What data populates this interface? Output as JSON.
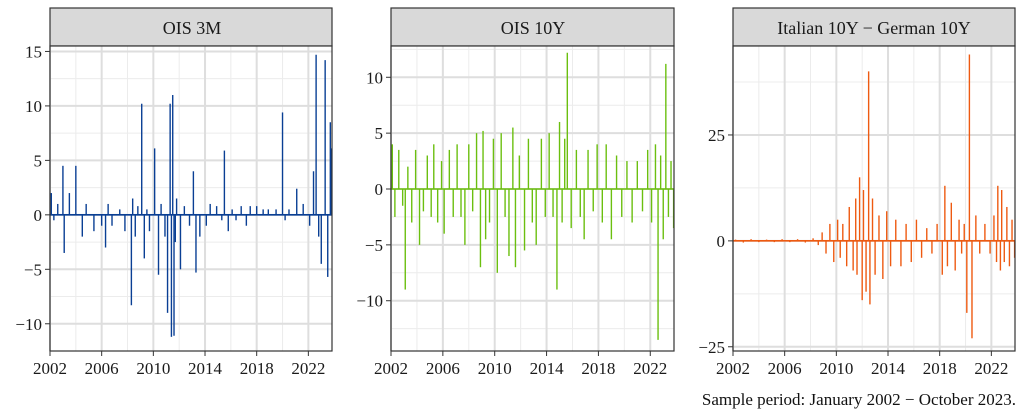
{
  "caption": "Sample period: January 2002 − October 2023.",
  "chart_data": [
    {
      "type": "bar",
      "title": "OIS 3M",
      "color": "#0a3f94",
      "xlim": [
        2002,
        2023.83
      ],
      "ylim": [
        -12.5,
        15.5
      ],
      "x_ticks": [
        2002,
        2006,
        2010,
        2014,
        2018,
        2022
      ],
      "y_ticks": [
        -10,
        -5,
        0,
        5,
        10,
        15
      ],
      "y_tick_labels": [
        "−10",
        "−5",
        "0",
        "5",
        "10",
        "15"
      ],
      "x": [
        2002.1,
        2002.3,
        2002.6,
        2003.0,
        2003.1,
        2003.5,
        2004.0,
        2004.5,
        2004.8,
        2005.4,
        2006.0,
        2006.3,
        2006.5,
        2006.8,
        2007.4,
        2007.8,
        2008.3,
        2008.4,
        2008.6,
        2008.8,
        2009.1,
        2009.3,
        2009.5,
        2009.7,
        2010.1,
        2010.4,
        2010.6,
        2010.9,
        2011.1,
        2011.3,
        2011.4,
        2011.5,
        2011.6,
        2011.7,
        2011.8,
        2012.1,
        2012.4,
        2012.8,
        2013.1,
        2013.3,
        2013.6,
        2014.1,
        2014.4,
        2014.9,
        2015.3,
        2015.5,
        2015.8,
        2016.1,
        2016.4,
        2016.8,
        2017.2,
        2017.5,
        2018.0,
        2018.5,
        2018.9,
        2019.5,
        2020.0,
        2020.2,
        2020.5,
        2021.1,
        2021.6,
        2022.1,
        2022.4,
        2022.6,
        2022.8,
        2023.0,
        2023.2,
        2023.3,
        2023.5,
        2023.7,
        2023.8
      ],
      "y": [
        2.0,
        -0.5,
        1.0,
        4.5,
        -3.5,
        2.0,
        4.5,
        -2.0,
        1.0,
        -1.5,
        -1.0,
        -3.0,
        1.0,
        -1.0,
        0.5,
        -1.5,
        -8.3,
        1.5,
        -2.0,
        0.8,
        10.2,
        -4.0,
        0.5,
        -1.5,
        6.1,
        -5.5,
        1.0,
        -2.0,
        -9.0,
        10.2,
        -11.2,
        11.0,
        -11.1,
        -2.5,
        1.5,
        -5.0,
        0.8,
        -1.0,
        4.0,
        -5.3,
        -2.0,
        -1.0,
        1.0,
        0.8,
        -0.5,
        5.9,
        -1.5,
        0.5,
        -0.5,
        0.8,
        -1.0,
        0.8,
        0.8,
        0.5,
        0.5,
        0.5,
        9.4,
        -0.5,
        0.5,
        2.4,
        1.0,
        -1.0,
        4.0,
        14.7,
        -2.0,
        -4.5,
        0.0,
        14.2,
        -5.7,
        8.5,
        6.1
      ]
    },
    {
      "type": "bar",
      "title": "OIS 10Y",
      "color": "#6bbf0f",
      "xlim": [
        2002,
        2023.83
      ],
      "ylim": [
        -14.5,
        12.8
      ],
      "x_ticks": [
        2002,
        2006,
        2010,
        2014,
        2018,
        2022
      ],
      "y_ticks": [
        -10,
        -5,
        0,
        5,
        10
      ],
      "y_tick_labels": [
        "−10",
        "−5",
        "0",
        "5",
        "10"
      ],
      "x": [
        2002.1,
        2002.3,
        2002.6,
        2002.9,
        2003.1,
        2003.3,
        2003.6,
        2003.9,
        2004.2,
        2004.5,
        2004.8,
        2005.1,
        2005.3,
        2005.6,
        2005.9,
        2006.1,
        2006.5,
        2006.8,
        2007.1,
        2007.4,
        2007.7,
        2008.0,
        2008.3,
        2008.6,
        2008.9,
        2009.1,
        2009.3,
        2009.6,
        2009.9,
        2010.2,
        2010.5,
        2010.8,
        2011.1,
        2011.4,
        2011.6,
        2011.9,
        2012.3,
        2012.6,
        2012.9,
        2013.2,
        2013.6,
        2013.9,
        2014.2,
        2014.5,
        2014.8,
        2015.0,
        2015.2,
        2015.4,
        2015.6,
        2015.9,
        2016.3,
        2016.6,
        2016.9,
        2017.2,
        2017.6,
        2017.9,
        2018.3,
        2018.6,
        2019.0,
        2019.4,
        2019.8,
        2020.2,
        2020.6,
        2021.0,
        2021.4,
        2021.8,
        2022.1,
        2022.4,
        2022.6,
        2022.8,
        2023.0,
        2023.2,
        2023.4,
        2023.6,
        2023.8
      ],
      "y": [
        4.0,
        -2.5,
        3.5,
        -1.5,
        -9.0,
        2.0,
        -3.0,
        3.5,
        -5.0,
        -2.0,
        3.0,
        -2.5,
        4.0,
        -3.0,
        2.5,
        -4.0,
        3.5,
        -2.5,
        4.0,
        -2.5,
        -5.0,
        4.0,
        -2.0,
        5.0,
        -7.0,
        5.2,
        -4.5,
        -3.0,
        4.5,
        -7.5,
        5.0,
        -2.5,
        -6.0,
        5.5,
        -7.0,
        3.0,
        -5.5,
        4.5,
        -3.0,
        -5.0,
        4.5,
        -2.5,
        5.0,
        -2.5,
        -9.0,
        6.0,
        -3.0,
        4.5,
        12.2,
        -3.5,
        3.5,
        -2.5,
        -4.5,
        3.5,
        -2.0,
        4.0,
        -3.0,
        4.0,
        -4.5,
        3.0,
        -2.5,
        2.5,
        -3.0,
        2.5,
        -2.0,
        3.5,
        -3.0,
        4.0,
        -13.5,
        3.0,
        -4.5,
        11.2,
        -2.5,
        2.5,
        -3.5
      ]
    },
    {
      "type": "bar",
      "title": "Italian 10Y − German 10Y",
      "color": "#ee5a11",
      "xlim": [
        2002,
        2023.83
      ],
      "ylim": [
        -26,
        46
      ],
      "x_ticks": [
        2002,
        2006,
        2010,
        2014,
        2018,
        2022
      ],
      "y_ticks": [
        -25,
        0,
        25
      ],
      "y_tick_labels": [
        "−25",
        "0",
        "25"
      ],
      "x": [
        2002.2,
        2002.8,
        2003.4,
        2004.0,
        2004.6,
        2005.2,
        2005.8,
        2006.4,
        2007.0,
        2007.6,
        2008.2,
        2008.6,
        2008.9,
        2009.2,
        2009.5,
        2009.8,
        2010.1,
        2010.3,
        2010.5,
        2010.8,
        2011.0,
        2011.3,
        2011.5,
        2011.6,
        2011.8,
        2012.0,
        2012.1,
        2012.3,
        2012.5,
        2012.6,
        2012.8,
        2013.0,
        2013.3,
        2013.6,
        2013.9,
        2014.2,
        2014.6,
        2015.0,
        2015.4,
        2015.8,
        2016.2,
        2016.6,
        2017.0,
        2017.4,
        2017.8,
        2018.2,
        2018.4,
        2018.6,
        2018.9,
        2019.2,
        2019.5,
        2019.7,
        2019.9,
        2020.1,
        2020.3,
        2020.5,
        2020.8,
        2021.1,
        2021.5,
        2021.9,
        2022.2,
        2022.4,
        2022.5,
        2022.7,
        2022.8,
        2023.0,
        2023.2,
        2023.4,
        2023.6,
        2023.8
      ],
      "y": [
        0.3,
        -0.4,
        0.4,
        -0.3,
        0.3,
        -0.3,
        0.4,
        -0.3,
        0.4,
        -0.4,
        0.6,
        -1.0,
        2.0,
        -3.0,
        4.0,
        -5.0,
        5.0,
        -4.0,
        4.0,
        -6.0,
        8.0,
        -7.0,
        10.0,
        -8.0,
        15.0,
        -14.0,
        12.0,
        -12.0,
        40.0,
        -15.0,
        10.0,
        -8.0,
        6.0,
        -9.0,
        7.0,
        -6.0,
        5.0,
        -6.0,
        4.0,
        -5.0,
        5.0,
        -4.0,
        3.0,
        -3.0,
        4.0,
        -8.0,
        13.0,
        -6.0,
        9.0,
        -7.0,
        5.0,
        -3.0,
        4.0,
        -17.0,
        44.0,
        -23.0,
        6.0,
        -3.0,
        4.0,
        -3.0,
        6.0,
        -5.0,
        13.0,
        -7.0,
        12.0,
        -5.0,
        8.0,
        -6.0,
        5.0,
        -4.0
      ]
    }
  ]
}
